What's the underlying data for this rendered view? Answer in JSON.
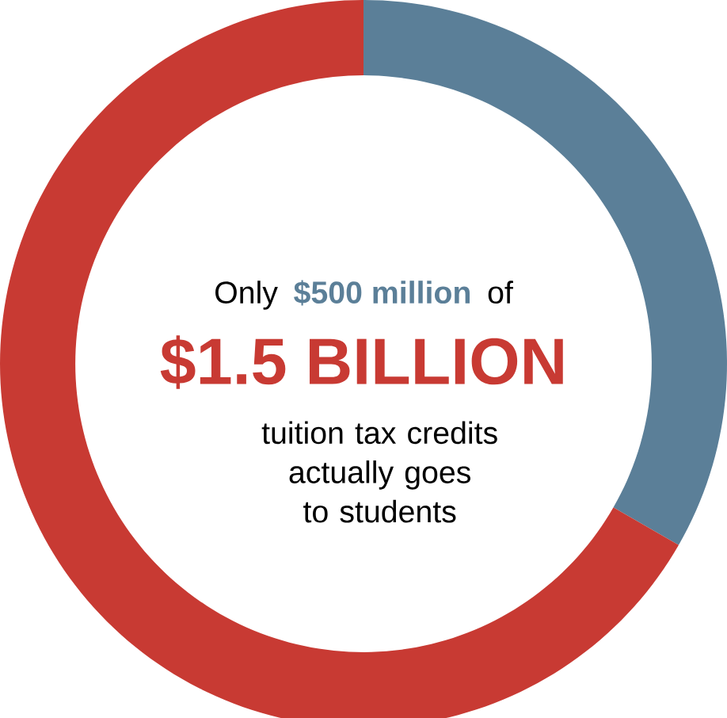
{
  "chart_data": {
    "type": "donut",
    "categories": [
      null,
      null
    ],
    "values": [
      33.3,
      66.7
    ],
    "colors": [
      "#5b7f98",
      "#c83a33"
    ],
    "annotations": [
      "Only",
      "$500 million",
      "of",
      "$1.5 BILLION",
      "tuition tax credits actually goes to students"
    ]
  }
}
